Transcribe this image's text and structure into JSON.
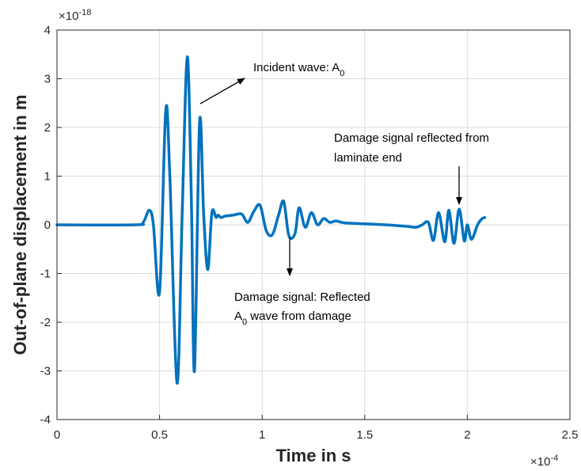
{
  "colors": {
    "line": "#0072BD",
    "grid": "#dcdcdc",
    "axis": "#262626"
  },
  "chart_data": {
    "type": "line",
    "xlabel": "Time in s",
    "ylabel": "Out-of-plane displacement in m",
    "x_multiplier": {
      "base": "×10",
      "exponent": "-4"
    },
    "y_multiplier": {
      "base": "×10",
      "exponent": "-18"
    },
    "xlim": [
      0,
      2.5
    ],
    "ylim": [
      -4,
      4
    ],
    "x_scale_factor": "1e-4",
    "y_scale_factor": "1e-18",
    "xticks": [
      "0",
      "0.5",
      "1",
      "1.5",
      "2",
      "2.5"
    ],
    "yticks": [
      "-4",
      "-3",
      "-2",
      "-1",
      "0",
      "1",
      "2",
      "3",
      "4"
    ],
    "grid": true,
    "series": [
      {
        "x": [
          0,
          0.38,
          0.42,
          0.45,
          0.47,
          0.5,
          0.53,
          0.55,
          0.585,
          0.61,
          0.635,
          0.655,
          0.67,
          0.695,
          0.715,
          0.735,
          0.755,
          0.775,
          0.785,
          0.8,
          0.82,
          0.86,
          0.9,
          0.93,
          0.96,
          0.99,
          1.02,
          1.05,
          1.08,
          1.105,
          1.13,
          1.16,
          1.18,
          1.21,
          1.24,
          1.27,
          1.3,
          1.33,
          1.36,
          1.4,
          1.5,
          1.6,
          1.7,
          1.75,
          1.78,
          1.81,
          1.835,
          1.86,
          1.89,
          1.91,
          1.935,
          1.96,
          1.985,
          2.0,
          2.02,
          2.05,
          2.07,
          2.085
        ],
        "y": [
          0,
          0,
          0.05,
          0.3,
          0.0,
          -1.38,
          2.35,
          1.0,
          -3.25,
          0.2,
          3.45,
          0.5,
          -3.0,
          2.12,
          0.2,
          -0.92,
          0.25,
          0.15,
          0.2,
          0.15,
          0.18,
          0.2,
          0.22,
          0.05,
          0.28,
          0.4,
          -0.12,
          -0.2,
          0.2,
          0.48,
          -0.22,
          -0.18,
          0.35,
          -0.05,
          0.25,
          0.0,
          0.13,
          0.05,
          0.08,
          0.04,
          0.02,
          0.0,
          -0.03,
          -0.05,
          0.0,
          0.05,
          -0.32,
          0.25,
          -0.35,
          0.3,
          -0.38,
          0.32,
          -0.33,
          0.0,
          -0.3,
          0.0,
          0.12,
          0.15
        ]
      }
    ],
    "annotations": [
      {
        "lines": [
          "Incident wave: A",
          "0"
        ],
        "subscript_index": 1
      },
      {
        "lines": [
          "Damage signal reflected from",
          "laminate end"
        ]
      },
      {
        "lines": [
          "Damage signal: Reflected",
          "A",
          "0",
          " wave from damage"
        ]
      }
    ]
  }
}
